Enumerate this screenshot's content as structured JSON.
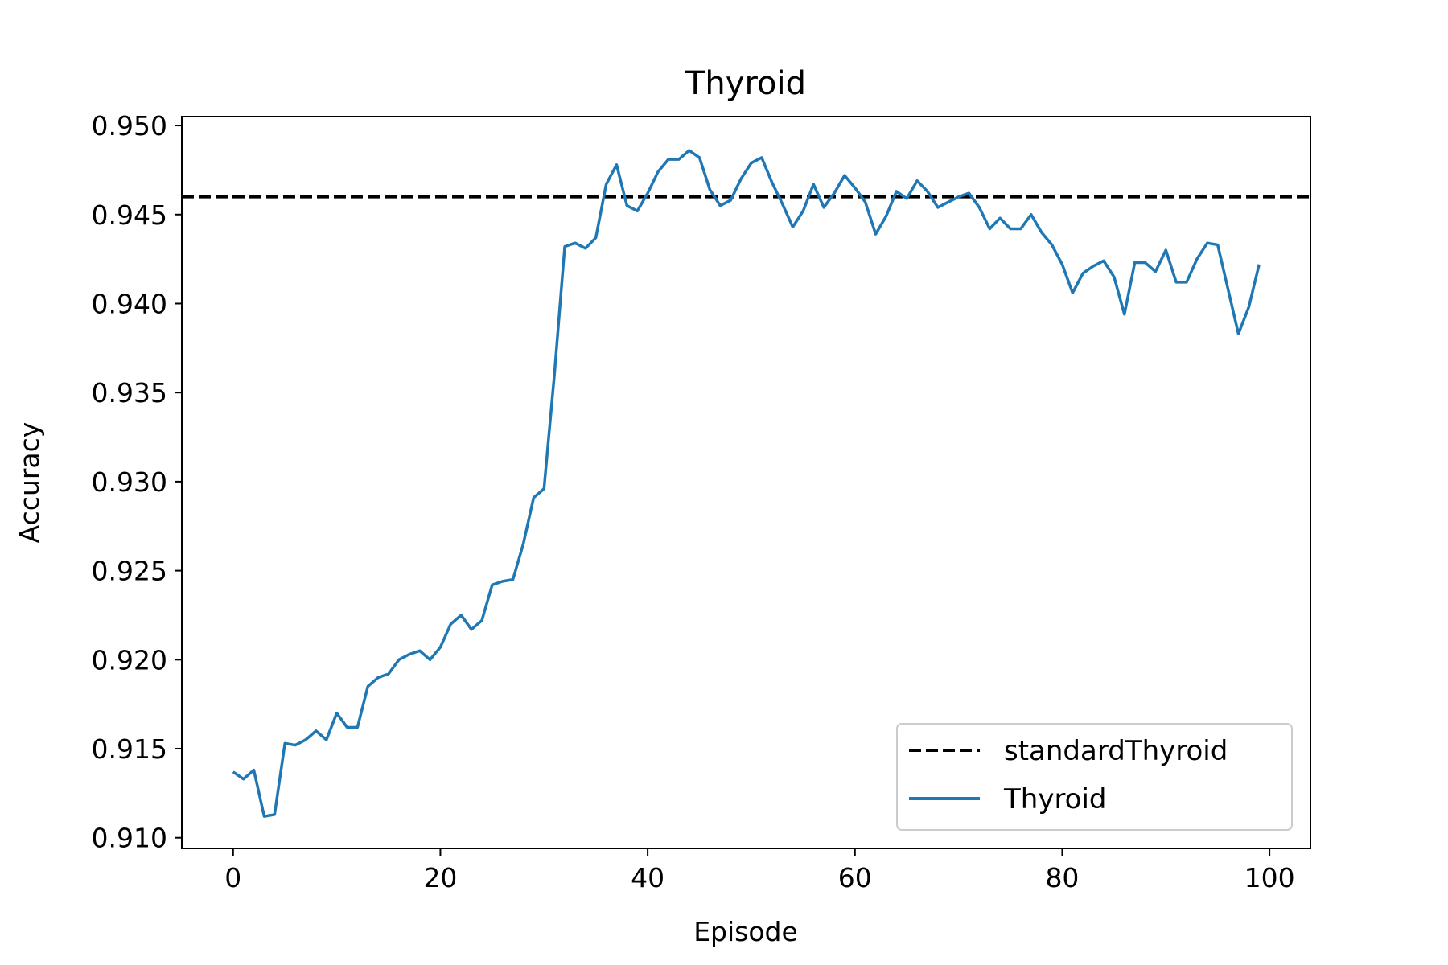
{
  "chart_data": {
    "type": "line",
    "title": "Thyroid",
    "xlabel": "Episode",
    "ylabel": "Accuracy",
    "xlim": [
      -4.95,
      103.95
    ],
    "ylim": [
      0.9094,
      0.9505
    ],
    "xticks": [
      0,
      20,
      40,
      60,
      80,
      100
    ],
    "xtick_labels": [
      "0",
      "20",
      "40",
      "60",
      "80",
      "100"
    ],
    "yticks": [
      0.91,
      0.915,
      0.92,
      0.925,
      0.93,
      0.935,
      0.94,
      0.945,
      0.95
    ],
    "ytick_labels": [
      "0.910",
      "0.915",
      "0.920",
      "0.925",
      "0.930",
      "0.935",
      "0.940",
      "0.945",
      "0.950"
    ],
    "grid": false,
    "legend_position": "lower-right",
    "series": [
      {
        "name": "standardThyroid",
        "style": "dashed",
        "color": "#000000",
        "x": [
          -4.95,
          103.95
        ],
        "values": [
          0.946,
          0.946
        ]
      },
      {
        "name": "Thyroid",
        "style": "solid",
        "color": "#1f77b4",
        "x": [
          0,
          1,
          2,
          3,
          4,
          5,
          6,
          7,
          8,
          9,
          10,
          11,
          12,
          13,
          14,
          15,
          16,
          17,
          18,
          19,
          20,
          21,
          22,
          23,
          24,
          25,
          26,
          27,
          28,
          29,
          30,
          31,
          32,
          33,
          34,
          35,
          36,
          37,
          38,
          39,
          40,
          41,
          42,
          43,
          44,
          45,
          46,
          47,
          48,
          49,
          50,
          51,
          52,
          53,
          54,
          55,
          56,
          57,
          58,
          59,
          60,
          61,
          62,
          63,
          64,
          65,
          66,
          67,
          68,
          69,
          70,
          71,
          72,
          73,
          74,
          75,
          76,
          77,
          78,
          79,
          80,
          81,
          82,
          83,
          84,
          85,
          86,
          87,
          88,
          89,
          90,
          91,
          92,
          93,
          94,
          95,
          96,
          97,
          98,
          99
        ],
        "values": [
          0.9137,
          0.9133,
          0.9138,
          0.9112,
          0.9113,
          0.9153,
          0.9152,
          0.9155,
          0.916,
          0.9155,
          0.917,
          0.9162,
          0.9162,
          0.9185,
          0.919,
          0.9192,
          0.92,
          0.9203,
          0.9205,
          0.92,
          0.9207,
          0.922,
          0.9225,
          0.9217,
          0.9222,
          0.9242,
          0.9244,
          0.9245,
          0.9265,
          0.9291,
          0.9296,
          0.936,
          0.9432,
          0.9434,
          0.9431,
          0.9437,
          0.9467,
          0.9478,
          0.9455,
          0.9452,
          0.9462,
          0.9474,
          0.9481,
          0.9481,
          0.9486,
          0.9482,
          0.9464,
          0.9455,
          0.9458,
          0.947,
          0.9479,
          0.9482,
          0.9468,
          0.9456,
          0.9443,
          0.9452,
          0.9467,
          0.9454,
          0.9462,
          0.9472,
          0.9465,
          0.9457,
          0.9439,
          0.9449,
          0.9463,
          0.9459,
          0.9469,
          0.9463,
          0.9454,
          0.9457,
          0.946,
          0.9462,
          0.9454,
          0.9442,
          0.9448,
          0.9442,
          0.9442,
          0.945,
          0.944,
          0.9433,
          0.9422,
          0.9406,
          0.9417,
          0.9421,
          0.9424,
          0.9415,
          0.9394,
          0.9423,
          0.9423,
          0.9418,
          0.943,
          0.9412,
          0.9412,
          0.9425,
          0.9434,
          0.9433,
          0.9408,
          0.9383,
          0.9398,
          0.9422
        ]
      }
    ]
  }
}
